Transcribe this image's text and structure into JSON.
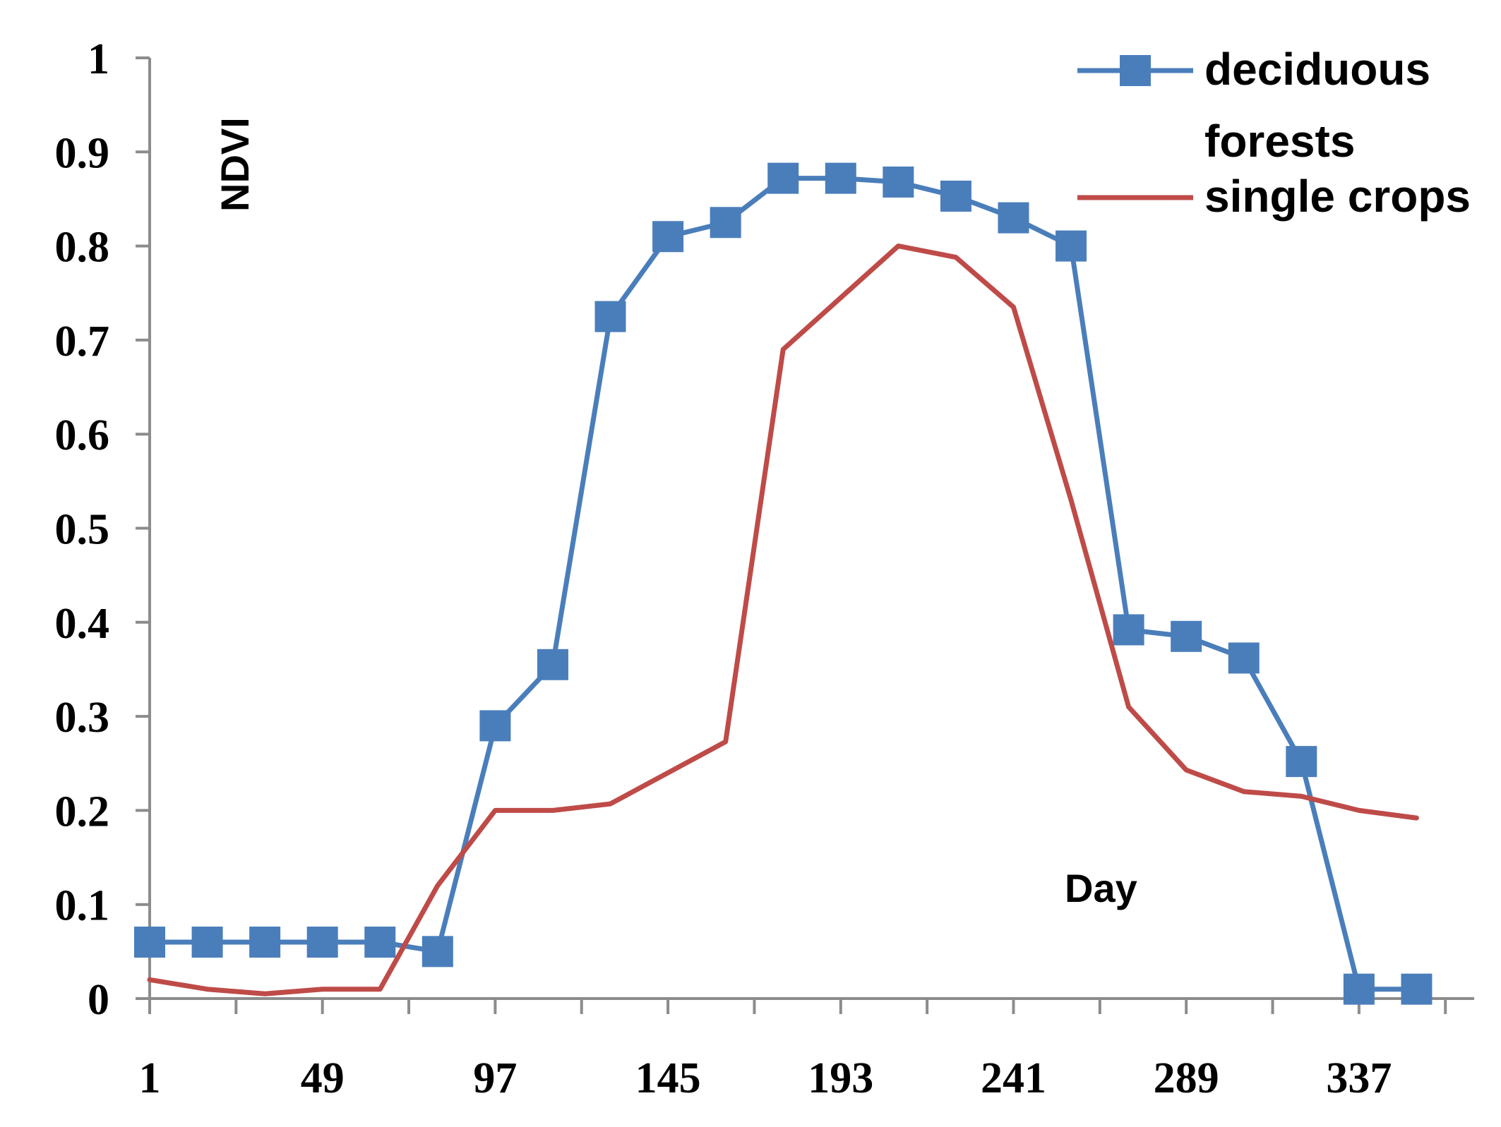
{
  "chart_data": {
    "type": "line",
    "title": "",
    "xlabel": "Day",
    "ylabel": "NDVI",
    "xlim": [
      1,
      369
    ],
    "ylim": [
      0,
      1
    ],
    "x_ticks": [
      1,
      49,
      97,
      145,
      193,
      241,
      289,
      337
    ],
    "y_ticks": [
      0,
      0.1,
      0.2,
      0.3,
      0.4,
      0.5,
      0.6,
      0.7,
      0.8,
      0.9,
      1
    ],
    "y_tick_labels": [
      "0",
      "0.1",
      "0.2",
      "0.3",
      "0.4",
      "0.5",
      "0.6",
      "0.7",
      "0.8",
      "0.9",
      "1"
    ],
    "legend_position": "top-right",
    "grid": false,
    "series": [
      {
        "name": "deciduous forests",
        "legend_lines": [
          "deciduous",
          "forests"
        ],
        "color": "#4a7ebb",
        "marker": "square",
        "x": [
          1,
          17,
          33,
          49,
          65,
          81,
          97,
          113,
          129,
          145,
          161,
          177,
          193,
          209,
          225,
          241,
          257,
          273,
          289,
          305,
          321,
          337,
          353
        ],
        "y": [
          0.06,
          0.06,
          0.06,
          0.06,
          0.06,
          0.05,
          0.29,
          0.355,
          0.725,
          0.81,
          0.825,
          0.872,
          0.872,
          0.868,
          0.853,
          0.83,
          0.8,
          0.392,
          0.385,
          0.362,
          0.252,
          0.01,
          0.01
        ]
      },
      {
        "name": "single crops",
        "legend_lines": [
          "single crops"
        ],
        "color": "#be4b48",
        "marker": "none",
        "x": [
          1,
          17,
          33,
          49,
          65,
          81,
          97,
          113,
          129,
          145,
          161,
          177,
          193,
          209,
          225,
          241,
          257,
          273,
          289,
          305,
          321,
          337,
          353
        ],
        "y": [
          0.02,
          0.01,
          0.005,
          0.01,
          0.01,
          0.12,
          0.2,
          0.2,
          0.207,
          0.24,
          0.273,
          0.69,
          0.745,
          0.8,
          0.788,
          0.735,
          0.53,
          0.31,
          0.243,
          0.22,
          0.215,
          0.2,
          0.192
        ]
      }
    ]
  }
}
